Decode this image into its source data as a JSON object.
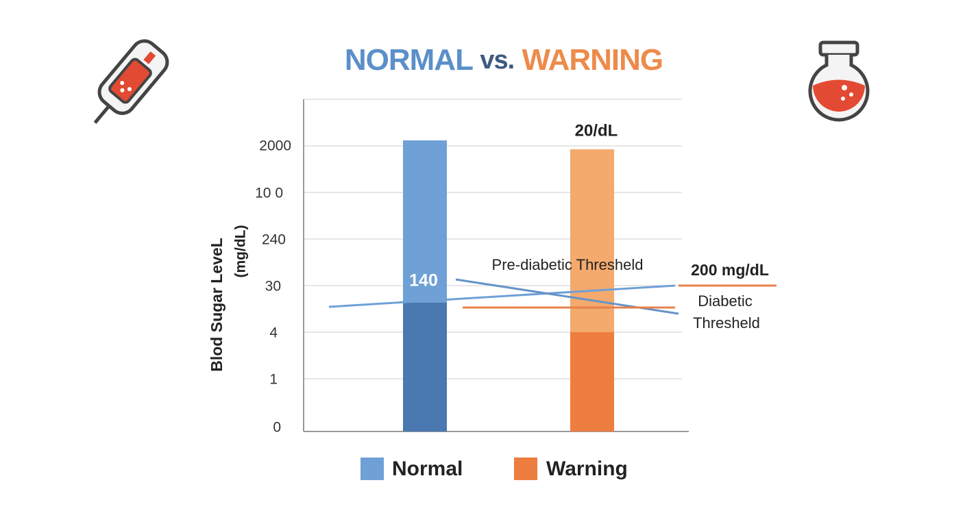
{
  "title": {
    "part1": "NORMAL",
    "part2": "vs.",
    "part3": "WARNING"
  },
  "y_axis": {
    "label_line1": "Blod Sugar LeveL",
    "label_line2": "(mg/dL)",
    "ticks": [
      "2000",
      "10 0",
      "240",
      "30",
      "4",
      "1",
      "0"
    ]
  },
  "annotations": {
    "normal_bar_label": "140",
    "warning_bar_label": "20/dL",
    "pre_diabetic": "Pre-diabetic Thresheld",
    "diabetic_value": "200 mg/dL",
    "diabetic_line1": "Diabetic",
    "diabetic_line2": "Thresheld"
  },
  "legend": [
    "Normal",
    "Warning"
  ]
}
